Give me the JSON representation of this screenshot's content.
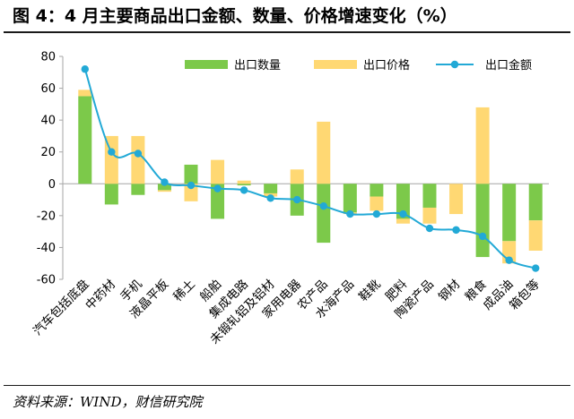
{
  "title": "图 4：4 月主要商品出口金额、数量、价格增速变化（%）",
  "source": "资料来源：WIND，财信研究院",
  "colors": {
    "quantity": "#7cc94a",
    "price": "#ffd873",
    "amount": "#22a9d6",
    "axis": "#a6a6a6"
  },
  "chart_data": {
    "type": "bar",
    "stacked": true,
    "categories": [
      "汽车包括底盘",
      "中药材",
      "手机",
      "液晶平板",
      "稀土",
      "船舶",
      "集成电路",
      "未锻轧铝及铝材",
      "家用电器",
      "农产品",
      "水海产品",
      "鞋靴",
      "肥料",
      "陶瓷产品",
      "钢材",
      "粮食",
      "成品油",
      "箱包等"
    ],
    "series": [
      {
        "name": "出口数量",
        "type": "bar",
        "values": [
          55,
          -13,
          -7,
          -4,
          12,
          -22,
          -1,
          -6,
          -20,
          -37,
          -18,
          -8,
          -22,
          -15,
          0,
          -46,
          -36,
          -23
        ]
      },
      {
        "name": "出口价格",
        "type": "bar",
        "values": [
          4,
          30,
          30,
          -1,
          -11,
          15,
          2,
          -2,
          9,
          39,
          -1,
          -9,
          -3,
          -10,
          -19,
          48,
          -14,
          -19
        ]
      },
      {
        "name": "出口金额",
        "type": "line",
        "values": [
          72,
          20,
          19,
          1,
          -1,
          -3,
          -4,
          -9,
          -10,
          -14,
          -19,
          -19,
          -19,
          -28,
          -29,
          -33,
          -48,
          -53
        ]
      }
    ],
    "yticks": [
      80,
      60,
      40,
      20,
      0,
      -20,
      -40,
      -60
    ],
    "ylim": [
      -60,
      80
    ],
    "legend_position": "top-right"
  }
}
